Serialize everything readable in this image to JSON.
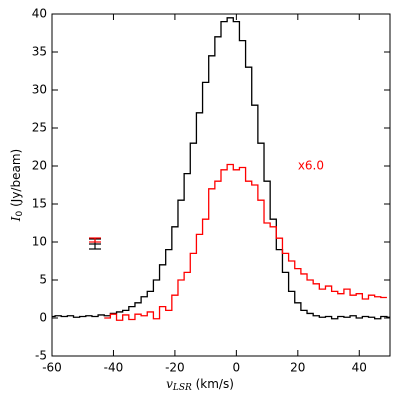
{
  "chart_data": {
    "type": "line",
    "drawstyle": "steps-mid",
    "xlabel": {
      "symbol": "v",
      "subscript": "LSR",
      "unit": "(km/s)"
    },
    "ylabel": {
      "symbol": "I",
      "subscript": "0",
      "unit": "(Jy/beam)"
    },
    "annotation": {
      "text": "x6.0",
      "x": 20,
      "y": 20,
      "color": "#ff0000"
    },
    "xlim": [
      -60,
      50
    ],
    "ylim": [
      -5,
      40
    ],
    "xticks": [
      -60,
      -40,
      -20,
      0,
      20,
      40
    ],
    "yticks": [
      -5,
      0,
      5,
      10,
      15,
      20,
      25,
      30,
      35,
      40
    ],
    "x": [
      -60,
      -58,
      -56,
      -54,
      -52,
      -50,
      -48,
      -46,
      -44,
      -42,
      -40,
      -38,
      -36,
      -34,
      -32,
      -30,
      -28,
      -26,
      -24,
      -22,
      -20,
      -18,
      -16,
      -14,
      -12,
      -10,
      -8,
      -6,
      -4,
      -2,
      0,
      2,
      4,
      6,
      8,
      10,
      12,
      14,
      16,
      18,
      20,
      22,
      24,
      26,
      28,
      30,
      32,
      34,
      36,
      38,
      40,
      42,
      44,
      46,
      48,
      50
    ],
    "series": [
      {
        "color": "#000000",
        "values": [
          0.2,
          0.3,
          0.2,
          0.3,
          0.1,
          0.2,
          0.3,
          0.2,
          0.4,
          0.3,
          0.6,
          0.8,
          1.0,
          1.5,
          2.0,
          2.8,
          3.5,
          5,
          7,
          9,
          12,
          15.5,
          19,
          23,
          27,
          31,
          34.5,
          37,
          39,
          39.5,
          39,
          36.5,
          33,
          28,
          23,
          18,
          13,
          9,
          6,
          3.5,
          2,
          1,
          0.6,
          0.3,
          0.1,
          0.2,
          -0.1,
          0.2,
          0.1,
          0.3,
          0,
          0.2,
          0.1,
          -0.1,
          0.2,
          0.1
        ]
      },
      {
        "color": "#ff0000",
        "values": [
          null,
          null,
          null,
          null,
          null,
          null,
          null,
          null,
          null,
          0,
          0.5,
          -0.3,
          0.4,
          -0.2,
          0.5,
          0.3,
          0.8,
          -0.1,
          1.5,
          1,
          3,
          5,
          6,
          8.5,
          11,
          13,
          17,
          18,
          19.5,
          20.2,
          19.5,
          19.8,
          18,
          17.5,
          15.5,
          12.5,
          12,
          10.5,
          8.5,
          7.5,
          6.5,
          5.8,
          5,
          4.5,
          3.8,
          4.2,
          3.5,
          3.2,
          3.8,
          3,
          3.2,
          2.5,
          3,
          2.8,
          2.7,
          null
        ]
      }
    ]
  }
}
